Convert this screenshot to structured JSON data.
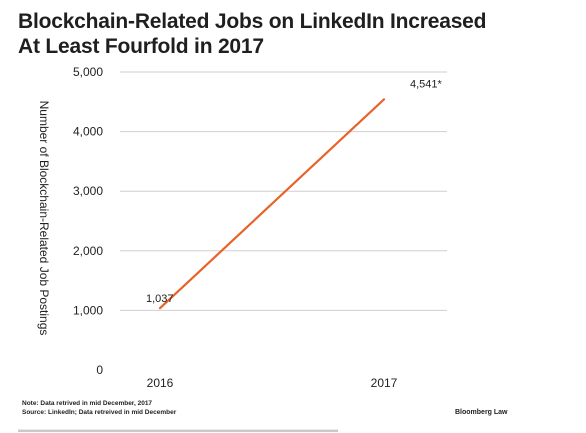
{
  "chart_data": {
    "type": "line",
    "title_lines": [
      "Blockchain-Related Jobs on LinkedIn Increased",
      "At Least Fourfold in 2017"
    ],
    "xlabel": "",
    "ylabel": "Number of Blockchain-Related Job Postings",
    "categories": [
      "2016",
      "2017"
    ],
    "series": [
      {
        "values": [
          1037,
          4541
        ],
        "data_labels": [
          "1,037",
          "4,541*"
        ],
        "color": "#e8632a"
      }
    ],
    "ylim": [
      0,
      5000
    ],
    "yticks": [
      0,
      1000,
      2000,
      3000,
      4000,
      5000
    ],
    "ytick_labels": [
      "0",
      "1,000",
      "2,000",
      "3,000",
      "4,000",
      "5,000"
    ],
    "grid": true,
    "gridline_color": "#cfcfcf"
  },
  "footer": {
    "note": "Note: Data retrived in mid December, 2017",
    "source": "Source: LinkedIn; Data retreived in mid December",
    "brand": "Bloomberg Law"
  }
}
